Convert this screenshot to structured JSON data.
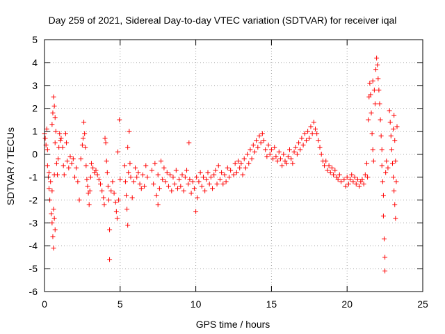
{
  "chart_data": {
    "type": "scatter",
    "title": "Day 259 of 2021, Sidereal Day-to-day VTEC variation (SDTVAR) for receiver iqal",
    "xlabel": "GPS time / hours",
    "ylabel": "SDTVAR / TECUs",
    "xlim": [
      0,
      25
    ],
    "ylim": [
      -6,
      5
    ],
    "xticks": [
      "0",
      "5",
      "10",
      "15",
      "20",
      "25"
    ],
    "yticks": [
      "-6",
      "-5",
      "-4",
      "-3",
      "-2",
      "-1",
      "0",
      "1",
      "2",
      "3",
      "4",
      "5"
    ],
    "grid": true,
    "marker": "+",
    "color": "#ff0000",
    "series": [
      {
        "name": "SDTVAR",
        "points": [
          [
            0.0,
            0.9
          ],
          [
            0.05,
            0.7
          ],
          [
            0.1,
            0.4
          ],
          [
            0.15,
            1.1
          ],
          [
            0.2,
            0.2
          ],
          [
            0.2,
            -0.5
          ],
          [
            0.25,
            -1.0
          ],
          [
            0.3,
            -0.8
          ],
          [
            0.3,
            -1.5
          ],
          [
            0.35,
            -2.0
          ],
          [
            0.4,
            -1.2
          ],
          [
            0.45,
            -2.6
          ],
          [
            0.5,
            -3.0
          ],
          [
            0.5,
            -1.6
          ],
          [
            0.55,
            -3.6
          ],
          [
            0.6,
            -4.1
          ],
          [
            0.6,
            -2.4
          ],
          [
            0.65,
            -2.8
          ],
          [
            0.65,
            -0.9
          ],
          [
            0.7,
            -3.3
          ],
          [
            0.5,
            1.3
          ],
          [
            0.55,
            1.8
          ],
          [
            0.6,
            2.5
          ],
          [
            0.65,
            2.1
          ],
          [
            0.7,
            1.6
          ],
          [
            0.75,
            1.0
          ],
          [
            0.7,
            0.5
          ],
          [
            0.8,
            -0.4
          ],
          [
            0.85,
            -0.9
          ],
          [
            0.9,
            -0.2
          ],
          [
            0.95,
            0.3
          ],
          [
            1.0,
            0.9
          ],
          [
            1.05,
            0.6
          ],
          [
            1.1,
            0.7
          ],
          [
            1.2,
            0.3
          ],
          [
            1.25,
            -0.5
          ],
          [
            1.3,
            -0.9
          ],
          [
            1.4,
            0.9
          ],
          [
            1.45,
            0.5
          ],
          [
            1.5,
            -0.3
          ],
          [
            1.6,
            -0.6
          ],
          [
            1.7,
            -0.1
          ],
          [
            1.8,
            -0.4
          ],
          [
            1.9,
            -0.2
          ],
          [
            2.0,
            -1.0
          ],
          [
            2.1,
            -0.6
          ],
          [
            2.2,
            -1.2
          ],
          [
            2.3,
            -2.0
          ],
          [
            2.4,
            -0.2
          ],
          [
            2.5,
            0.4
          ],
          [
            2.55,
            0.7
          ],
          [
            2.6,
            1.4
          ],
          [
            2.65,
            0.9
          ],
          [
            2.7,
            0.3
          ],
          [
            2.75,
            -0.5
          ],
          [
            2.8,
            -1.1
          ],
          [
            2.85,
            -1.4
          ],
          [
            2.9,
            -1.7
          ],
          [
            2.95,
            -2.2
          ],
          [
            3.0,
            -1.6
          ],
          [
            3.05,
            -1.0
          ],
          [
            3.1,
            -0.4
          ],
          [
            3.2,
            -0.6
          ],
          [
            3.3,
            -0.8
          ],
          [
            3.4,
            -0.7
          ],
          [
            3.5,
            -0.9
          ],
          [
            3.6,
            -1.1
          ],
          [
            3.7,
            -1.3
          ],
          [
            3.8,
            -1.6
          ],
          [
            3.9,
            -1.9
          ],
          [
            3.95,
            -2.2
          ],
          [
            4.0,
            0.7
          ],
          [
            4.05,
            0.5
          ],
          [
            4.1,
            -0.3
          ],
          [
            4.15,
            -0.8
          ],
          [
            4.2,
            -1.4
          ],
          [
            4.25,
            -2.0
          ],
          [
            4.3,
            -3.3
          ],
          [
            4.3,
            -4.6
          ],
          [
            4.4,
            -1.6
          ],
          [
            4.5,
            -1.2
          ],
          [
            4.6,
            -1.7
          ],
          [
            4.7,
            -2.1
          ],
          [
            4.75,
            -2.5
          ],
          [
            4.8,
            -2.8
          ],
          [
            4.85,
            0.1
          ],
          [
            4.9,
            -2.0
          ],
          [
            4.95,
            1.5
          ],
          [
            5.0,
            -1.1
          ],
          [
            5.3,
            -0.5
          ],
          [
            5.35,
            -1.2
          ],
          [
            5.4,
            -1.8
          ],
          [
            5.45,
            -2.4
          ],
          [
            5.5,
            -3.1
          ],
          [
            5.5,
            0.3
          ],
          [
            5.55,
            -0.8
          ],
          [
            5.6,
            1.0
          ],
          [
            5.65,
            -0.4
          ],
          [
            5.7,
            -1.0
          ],
          [
            5.8,
            -1.9
          ],
          [
            5.9,
            -1.2
          ],
          [
            6.0,
            -0.6
          ],
          [
            6.1,
            -1.0
          ],
          [
            6.2,
            -0.8
          ],
          [
            6.3,
            -1.3
          ],
          [
            6.4,
            -1.5
          ],
          [
            6.5,
            -0.9
          ],
          [
            6.6,
            -1.4
          ],
          [
            6.7,
            -0.5
          ],
          [
            6.8,
            -1.0
          ],
          [
            7.1,
            -0.7
          ],
          [
            7.2,
            -1.3
          ],
          [
            7.3,
            -0.4
          ],
          [
            7.4,
            -1.8
          ],
          [
            7.5,
            -0.9
          ],
          [
            7.5,
            -2.2
          ],
          [
            7.6,
            -1.5
          ],
          [
            7.7,
            -0.3
          ],
          [
            7.8,
            -1.1
          ],
          [
            7.9,
            -0.6
          ],
          [
            8.0,
            -1.2
          ],
          [
            8.1,
            -0.8
          ],
          [
            8.2,
            -1.4
          ],
          [
            8.3,
            -0.9
          ],
          [
            8.4,
            -1.6
          ],
          [
            8.5,
            -1.0
          ],
          [
            8.6,
            -1.3
          ],
          [
            8.7,
            -0.7
          ],
          [
            8.8,
            -1.5
          ],
          [
            8.9,
            -1.1
          ],
          [
            9.0,
            -1.4
          ],
          [
            9.1,
            -0.9
          ],
          [
            9.2,
            -1.6
          ],
          [
            9.3,
            -1.0
          ],
          [
            9.4,
            -0.7
          ],
          [
            9.5,
            -1.3
          ],
          [
            9.55,
            0.5
          ],
          [
            9.6,
            -1.1
          ],
          [
            9.7,
            -1.7
          ],
          [
            9.8,
            -1.2
          ],
          [
            9.9,
            -1.5
          ],
          [
            10.0,
            -2.5
          ],
          [
            10.05,
            -1.0
          ],
          [
            10.1,
            -1.9
          ],
          [
            10.2,
            -1.2
          ],
          [
            10.3,
            -0.8
          ],
          [
            10.4,
            -1.4
          ],
          [
            10.5,
            -1.0
          ],
          [
            10.6,
            -1.6
          ],
          [
            10.7,
            -1.1
          ],
          [
            10.8,
            -0.8
          ],
          [
            10.9,
            -1.3
          ],
          [
            11.0,
            -1.0
          ],
          [
            11.1,
            -1.5
          ],
          [
            11.2,
            -0.9
          ],
          [
            11.3,
            -0.7
          ],
          [
            11.4,
            -1.3
          ],
          [
            11.5,
            -0.5
          ],
          [
            11.6,
            -1.1
          ],
          [
            11.7,
            -0.8
          ],
          [
            11.8,
            -1.3
          ],
          [
            11.9,
            -0.9
          ],
          [
            12.0,
            -1.2
          ],
          [
            12.1,
            -0.6
          ],
          [
            12.2,
            -1.0
          ],
          [
            12.3,
            -0.7
          ],
          [
            12.5,
            -0.9
          ],
          [
            12.6,
            -0.4
          ],
          [
            12.7,
            -0.8
          ],
          [
            12.8,
            -0.3
          ],
          [
            12.9,
            -0.6
          ],
          [
            13.0,
            -0.4
          ],
          [
            13.1,
            -0.9
          ],
          [
            13.2,
            -0.2
          ],
          [
            13.3,
            -0.6
          ],
          [
            13.4,
            0.0
          ],
          [
            13.5,
            -0.4
          ],
          [
            13.6,
            0.2
          ],
          [
            13.7,
            -0.2
          ],
          [
            13.8,
            0.4
          ],
          [
            13.9,
            0.1
          ],
          [
            14.0,
            0.6
          ],
          [
            14.1,
            0.3
          ],
          [
            14.2,
            0.8
          ],
          [
            14.3,
            0.5
          ],
          [
            14.4,
            0.9
          ],
          [
            14.5,
            0.6
          ],
          [
            14.6,
            0.2
          ],
          [
            14.7,
            -0.1
          ],
          [
            14.8,
            0.4
          ],
          [
            14.9,
            0.0
          ],
          [
            15.0,
            0.2
          ],
          [
            15.1,
            -0.2
          ],
          [
            15.2,
            0.3
          ],
          [
            15.3,
            -0.1
          ],
          [
            15.4,
            -0.3
          ],
          [
            15.5,
            0.1
          ],
          [
            15.6,
            -0.2
          ],
          [
            15.7,
            -0.5
          ],
          [
            15.8,
            0.0
          ],
          [
            15.9,
            -0.3
          ],
          [
            16.0,
            -0.4
          ],
          [
            16.1,
            -0.1
          ],
          [
            16.2,
            0.2
          ],
          [
            16.3,
            -0.2
          ],
          [
            16.4,
            -0.4
          ],
          [
            16.5,
            0.1
          ],
          [
            16.6,
            0.3
          ],
          [
            16.7,
            0.0
          ],
          [
            16.8,
            0.5
          ],
          [
            16.9,
            0.2
          ],
          [
            17.0,
            0.7
          ],
          [
            17.1,
            0.4
          ],
          [
            17.2,
            0.9
          ],
          [
            17.3,
            0.6
          ],
          [
            17.4,
            1.0
          ],
          [
            17.5,
            0.7
          ],
          [
            17.6,
            1.2
          ],
          [
            17.7,
            0.9
          ],
          [
            17.8,
            1.4
          ],
          [
            17.9,
            1.1
          ],
          [
            18.0,
            0.9
          ],
          [
            18.1,
            0.6
          ],
          [
            18.2,
            0.3
          ],
          [
            18.3,
            0.0
          ],
          [
            18.4,
            -0.3
          ],
          [
            18.5,
            -0.5
          ],
          [
            18.6,
            -0.3
          ],
          [
            18.7,
            -0.7
          ],
          [
            18.8,
            -0.5
          ],
          [
            18.9,
            -0.8
          ],
          [
            19.0,
            -0.6
          ],
          [
            19.1,
            -0.9
          ],
          [
            19.2,
            -0.7
          ],
          [
            19.3,
            -1.0
          ],
          [
            19.4,
            -1.1
          ],
          [
            19.5,
            -0.9
          ],
          [
            19.6,
            -1.2
          ],
          [
            19.8,
            -1.1
          ],
          [
            19.9,
            -1.4
          ],
          [
            20.0,
            -1.0
          ],
          [
            20.1,
            -1.3
          ],
          [
            20.2,
            -1.1
          ],
          [
            20.3,
            -0.9
          ],
          [
            20.4,
            -1.2
          ],
          [
            20.5,
            -1.0
          ],
          [
            20.6,
            -1.3
          ],
          [
            20.7,
            -1.1
          ],
          [
            20.8,
            -1.4
          ],
          [
            20.9,
            -1.2
          ],
          [
            21.0,
            -1.1
          ],
          [
            21.1,
            -1.3
          ],
          [
            21.2,
            -0.9
          ],
          [
            21.3,
            -0.4
          ],
          [
            21.35,
            -1.0
          ],
          [
            21.4,
            1.5
          ],
          [
            21.45,
            2.5
          ],
          [
            21.5,
            3.1
          ],
          [
            21.55,
            2.6
          ],
          [
            21.6,
            1.8
          ],
          [
            21.65,
            0.9
          ],
          [
            21.7,
            0.2
          ],
          [
            21.7,
            3.2
          ],
          [
            21.75,
            -0.3
          ],
          [
            21.8,
            2.8
          ],
          [
            21.85,
            2.2
          ],
          [
            21.9,
            3.7
          ],
          [
            21.95,
            4.2
          ],
          [
            22.0,
            3.9
          ],
          [
            22.05,
            3.3
          ],
          [
            22.1,
            2.8
          ],
          [
            22.15,
            2.2
          ],
          [
            22.2,
            1.5
          ],
          [
            22.25,
            0.8
          ],
          [
            22.3,
            0.2
          ],
          [
            22.3,
            -0.5
          ],
          [
            22.35,
            -1.2
          ],
          [
            22.4,
            -1.8
          ],
          [
            22.4,
            -2.7
          ],
          [
            22.45,
            -3.7
          ],
          [
            22.5,
            -4.5
          ],
          [
            22.5,
            -5.1
          ],
          [
            22.55,
            -0.8
          ],
          [
            22.6,
            -0.3
          ],
          [
            22.7,
            -0.6
          ],
          [
            22.8,
            1.9
          ],
          [
            22.85,
            1.4
          ],
          [
            22.9,
            0.8
          ],
          [
            22.95,
            0.2
          ],
          [
            23.0,
            -0.4
          ],
          [
            23.05,
            1.1
          ],
          [
            23.05,
            -1.0
          ],
          [
            23.1,
            -1.6
          ],
          [
            23.1,
            1.7
          ],
          [
            23.15,
            -2.2
          ],
          [
            23.15,
            0.6
          ],
          [
            23.2,
            -2.8
          ],
          [
            23.2,
            -0.3
          ],
          [
            23.25,
            -1.2
          ],
          [
            23.3,
            1.2
          ]
        ]
      }
    ]
  }
}
